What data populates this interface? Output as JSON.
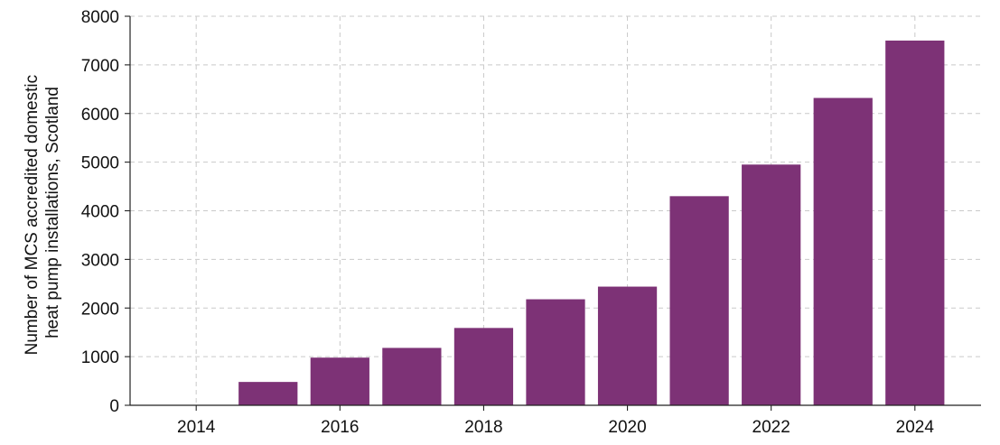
{
  "chart_data": {
    "type": "bar",
    "title": "",
    "xlabel": "",
    "ylabel_lines": [
      "Number of MCS accredited domestic",
      "heat pump installations, Scotland"
    ],
    "x": [
      2015,
      2016,
      2017,
      2018,
      2019,
      2020,
      2021,
      2022,
      2023,
      2024
    ],
    "values": [
      480,
      980,
      1180,
      1590,
      2180,
      2440,
      4300,
      4950,
      6320,
      7500
    ],
    "xlim": [
      2013.08,
      2024.92
    ],
    "ylim": [
      0,
      8000
    ],
    "x_ticks": [
      2014,
      2016,
      2018,
      2020,
      2022,
      2024
    ],
    "y_ticks": [
      0,
      1000,
      2000,
      3000,
      4000,
      5000,
      6000,
      7000,
      8000
    ],
    "bar_color": "#7d3276",
    "grid": true,
    "grid_style": "dashed",
    "legend": "none"
  }
}
